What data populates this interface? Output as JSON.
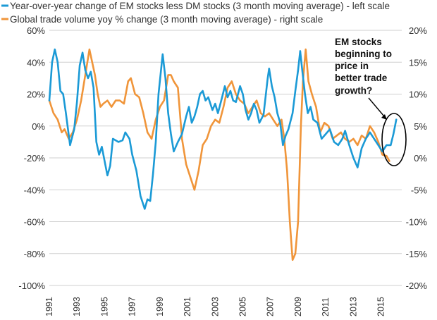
{
  "chart_data": {
    "type": "line",
    "colors": {
      "series1": "#1b9ad6",
      "series2": "#f0953a",
      "grid": "#cfcfcf",
      "annotation": "#000000"
    },
    "legend_position": "top-left",
    "grid": true,
    "x_ticks": [
      "1991",
      "1993",
      "1995",
      "1997",
      "1999",
      "2001",
      "2003",
      "2005",
      "2007",
      "2009",
      "2011",
      "2013",
      "2015"
    ],
    "xlim": [
      1991,
      2016.5
    ],
    "y_left": {
      "ticks": [
        "60%",
        "40%",
        "20%",
        "0%",
        "-20%",
        "-40%",
        "-60%",
        "-80%",
        "-100%"
      ],
      "ylim": [
        -100,
        60
      ]
    },
    "y_right": {
      "ticks": [
        "20%",
        "15%",
        "10%",
        "5%",
        "0%",
        "-5%",
        "-10%",
        "-15%",
        "-20%"
      ],
      "ylim": [
        -20,
        20
      ]
    },
    "annotation": {
      "lines": [
        "EM stocks",
        "beginning to",
        "price in",
        "better trade",
        "growth?"
      ]
    },
    "series": [
      {
        "name": "Year-over-year change of EM stocks less DM stocks (3 month moving average) - left scale",
        "axis": "left",
        "points": [
          [
            1991.0,
            16
          ],
          [
            1991.2,
            40
          ],
          [
            1991.4,
            48
          ],
          [
            1991.6,
            40
          ],
          [
            1991.8,
            22
          ],
          [
            1992.0,
            20
          ],
          [
            1992.2,
            8
          ],
          [
            1992.5,
            -12
          ],
          [
            1992.8,
            -2
          ],
          [
            1993.0,
            15
          ],
          [
            1993.2,
            38
          ],
          [
            1993.4,
            46
          ],
          [
            1993.6,
            35
          ],
          [
            1993.8,
            30
          ],
          [
            1994.0,
            34
          ],
          [
            1994.2,
            24
          ],
          [
            1994.4,
            -10
          ],
          [
            1994.6,
            -18
          ],
          [
            1994.8,
            -13
          ],
          [
            1995.0,
            -22
          ],
          [
            1995.2,
            -31
          ],
          [
            1995.4,
            -25
          ],
          [
            1995.6,
            -8
          ],
          [
            1995.8,
            -9
          ],
          [
            1996.0,
            -10
          ],
          [
            1996.3,
            -9
          ],
          [
            1996.5,
            -4
          ],
          [
            1996.8,
            -8
          ],
          [
            1997.0,
            -18
          ],
          [
            1997.3,
            -28
          ],
          [
            1997.6,
            -44
          ],
          [
            1997.9,
            -52
          ],
          [
            1998.1,
            -46
          ],
          [
            1998.3,
            -47
          ],
          [
            1998.5,
            -30
          ],
          [
            1998.7,
            -10
          ],
          [
            1998.9,
            20
          ],
          [
            1999.2,
            45
          ],
          [
            1999.4,
            30
          ],
          [
            1999.6,
            8
          ],
          [
            1999.8,
            -5
          ],
          [
            2000.0,
            -16
          ],
          [
            2000.3,
            -10
          ],
          [
            2000.6,
            -5
          ],
          [
            2000.9,
            6
          ],
          [
            2001.1,
            12
          ],
          [
            2001.3,
            2
          ],
          [
            2001.5,
            6
          ],
          [
            2001.7,
            12
          ],
          [
            2001.9,
            20
          ],
          [
            2002.1,
            22
          ],
          [
            2002.3,
            16
          ],
          [
            2002.5,
            18
          ],
          [
            2002.8,
            10
          ],
          [
            2003.0,
            14
          ],
          [
            2003.2,
            8
          ],
          [
            2003.5,
            18
          ],
          [
            2003.7,
            25
          ],
          [
            2003.9,
            18
          ],
          [
            2004.1,
            22
          ],
          [
            2004.3,
            16
          ],
          [
            2004.5,
            15
          ],
          [
            2004.8,
            25
          ],
          [
            2005.0,
            20
          ],
          [
            2005.2,
            10
          ],
          [
            2005.4,
            4
          ],
          [
            2005.6,
            8
          ],
          [
            2005.8,
            14
          ],
          [
            2006.0,
            10
          ],
          [
            2006.2,
            2
          ],
          [
            2006.5,
            7
          ],
          [
            2006.8,
            30
          ],
          [
            2006.9,
            36
          ],
          [
            2007.1,
            25
          ],
          [
            2007.3,
            18
          ],
          [
            2007.5,
            8
          ],
          [
            2007.7,
            2
          ],
          [
            2007.9,
            -12
          ],
          [
            2008.1,
            -6
          ],
          [
            2008.3,
            -2
          ],
          [
            2008.6,
            8
          ],
          [
            2008.8,
            22
          ],
          [
            2009.0,
            35
          ],
          [
            2009.15,
            47
          ],
          [
            2009.3,
            35
          ],
          [
            2009.5,
            20
          ],
          [
            2009.7,
            8
          ],
          [
            2009.9,
            12
          ],
          [
            2010.1,
            4
          ],
          [
            2010.4,
            2
          ],
          [
            2010.7,
            -8
          ],
          [
            2011.0,
            -5
          ],
          [
            2011.3,
            -2
          ],
          [
            2011.6,
            -10
          ],
          [
            2011.9,
            -12
          ],
          [
            2012.2,
            -8
          ],
          [
            2012.4,
            -3
          ],
          [
            2012.7,
            -12
          ],
          [
            2013.0,
            -20
          ],
          [
            2013.3,
            -26
          ],
          [
            2013.6,
            -14
          ],
          [
            2013.9,
            -8
          ],
          [
            2014.2,
            -4
          ],
          [
            2014.5,
            -8
          ],
          [
            2014.8,
            -12
          ],
          [
            2015.1,
            -16
          ],
          [
            2015.4,
            -12
          ],
          [
            2015.7,
            -12
          ],
          [
            2015.9,
            -5
          ],
          [
            2016.1,
            4
          ]
        ]
      },
      {
        "name": "Global trade volume yoy % change (3 month moving average) - right scale",
        "axis": "right",
        "points": [
          [
            1991.0,
            9
          ],
          [
            1991.3,
            7
          ],
          [
            1991.6,
            6
          ],
          [
            1991.9,
            4
          ],
          [
            1992.1,
            4.5
          ],
          [
            1992.4,
            3
          ],
          [
            1992.7,
            4
          ],
          [
            1993.0,
            6
          ],
          [
            1993.3,
            9
          ],
          [
            1993.6,
            13
          ],
          [
            1993.9,
            17
          ],
          [
            1994.1,
            15
          ],
          [
            1994.3,
            13
          ],
          [
            1994.5,
            10
          ],
          [
            1994.7,
            8
          ],
          [
            1994.9,
            8.5
          ],
          [
            1995.2,
            9
          ],
          [
            1995.5,
            8
          ],
          [
            1995.8,
            9
          ],
          [
            1996.1,
            9
          ],
          [
            1996.4,
            8.5
          ],
          [
            1996.7,
            12
          ],
          [
            1996.9,
            12.5
          ],
          [
            1997.2,
            10
          ],
          [
            1997.5,
            9.5
          ],
          [
            1997.8,
            7
          ],
          [
            1998.1,
            4
          ],
          [
            1998.4,
            3
          ],
          [
            1998.7,
            6
          ],
          [
            1999.0,
            8
          ],
          [
            1999.3,
            9
          ],
          [
            1999.6,
            13
          ],
          [
            1999.8,
            13
          ],
          [
            2000.0,
            12
          ],
          [
            2000.3,
            11
          ],
          [
            2000.6,
            3
          ],
          [
            2000.9,
            -1
          ],
          [
            2001.2,
            -3
          ],
          [
            2001.5,
            -5
          ],
          [
            2001.8,
            -2
          ],
          [
            2002.1,
            2
          ],
          [
            2002.4,
            3
          ],
          [
            2002.7,
            5
          ],
          [
            2003.0,
            6
          ],
          [
            2003.3,
            5.5
          ],
          [
            2003.6,
            8
          ],
          [
            2003.9,
            11
          ],
          [
            2004.2,
            12
          ],
          [
            2004.5,
            10
          ],
          [
            2004.8,
            9
          ],
          [
            2005.1,
            8.5
          ],
          [
            2005.4,
            7
          ],
          [
            2005.7,
            8
          ],
          [
            2006.0,
            9
          ],
          [
            2006.3,
            7
          ],
          [
            2006.6,
            6.5
          ],
          [
            2006.9,
            7
          ],
          [
            2007.2,
            6
          ],
          [
            2007.5,
            5
          ],
          [
            2007.8,
            6
          ],
          [
            2008.0,
            3
          ],
          [
            2008.2,
            -2
          ],
          [
            2008.4,
            -10
          ],
          [
            2008.6,
            -16
          ],
          [
            2008.8,
            -15
          ],
          [
            2009.0,
            -10
          ],
          [
            2009.2,
            5
          ],
          [
            2009.35,
            12
          ],
          [
            2009.55,
            17
          ],
          [
            2009.75,
            12
          ],
          [
            2010.0,
            10
          ],
          [
            2010.3,
            8
          ],
          [
            2010.6,
            4
          ],
          [
            2010.9,
            5.5
          ],
          [
            2011.2,
            5
          ],
          [
            2011.5,
            3
          ],
          [
            2011.8,
            3.5
          ],
          [
            2012.1,
            4
          ],
          [
            2012.4,
            3
          ],
          [
            2012.7,
            2.5
          ],
          [
            2013.0,
            3
          ],
          [
            2013.3,
            2
          ],
          [
            2013.6,
            3.5
          ],
          [
            2013.9,
            3
          ],
          [
            2014.2,
            5
          ],
          [
            2014.5,
            4
          ],
          [
            2014.8,
            2.5
          ],
          [
            2015.1,
            0.5
          ],
          [
            2015.4,
            0.3
          ],
          [
            2015.6,
            -0.5
          ]
        ]
      }
    ]
  }
}
